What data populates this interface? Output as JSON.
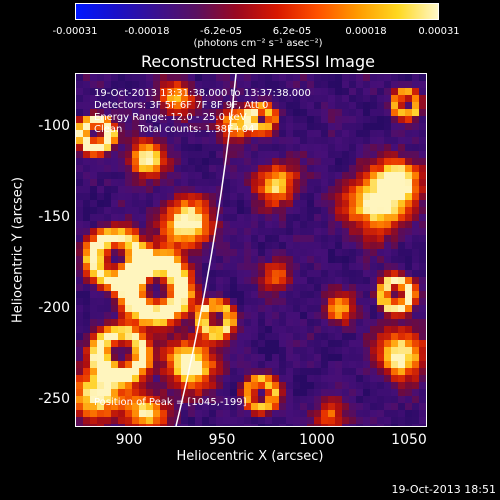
{
  "colorbar": {
    "ticks": [
      "-0.00031",
      "-0.00018",
      "-6.2e-05",
      "6.2e-05",
      "0.00018",
      "0.00031"
    ],
    "units": "(photons cm⁻² s⁻¹ asec⁻²)",
    "gradient": [
      "#0018ff",
      "#1a10c8",
      "#3a1090",
      "#5a1060",
      "#9a0820",
      "#d81800",
      "#ff5000",
      "#ff9a00",
      "#ffd820",
      "#fff8c8"
    ]
  },
  "title": "Reconstructed RHESSI Image",
  "info": {
    "line1": "19-Oct-2013 13:31:38.000 to 13:37:38.000",
    "line2": "Detectors: 3F 5F 6F 7F 8F 9F, Att 0",
    "line3": "Energy Range: 12.0 - 25.0 keV",
    "line4": "Clean     Total counts: 1.38E+04",
    "peak": "Position of Peak = [1045,-199]"
  },
  "axes": {
    "xlabel": "Heliocentric X (arcsec)",
    "ylabel": "Heliocentric Y (arcsec)",
    "xticks": [
      "900",
      "950",
      "1000",
      "1050"
    ],
    "yticks": [
      "-100",
      "-150",
      "-200",
      "-250"
    ]
  },
  "timestamp": "19-Oct-2013 18:51",
  "colors": {
    "background": "#000000",
    "plot_base": "#3a1070",
    "limb": "#ffffff"
  }
}
